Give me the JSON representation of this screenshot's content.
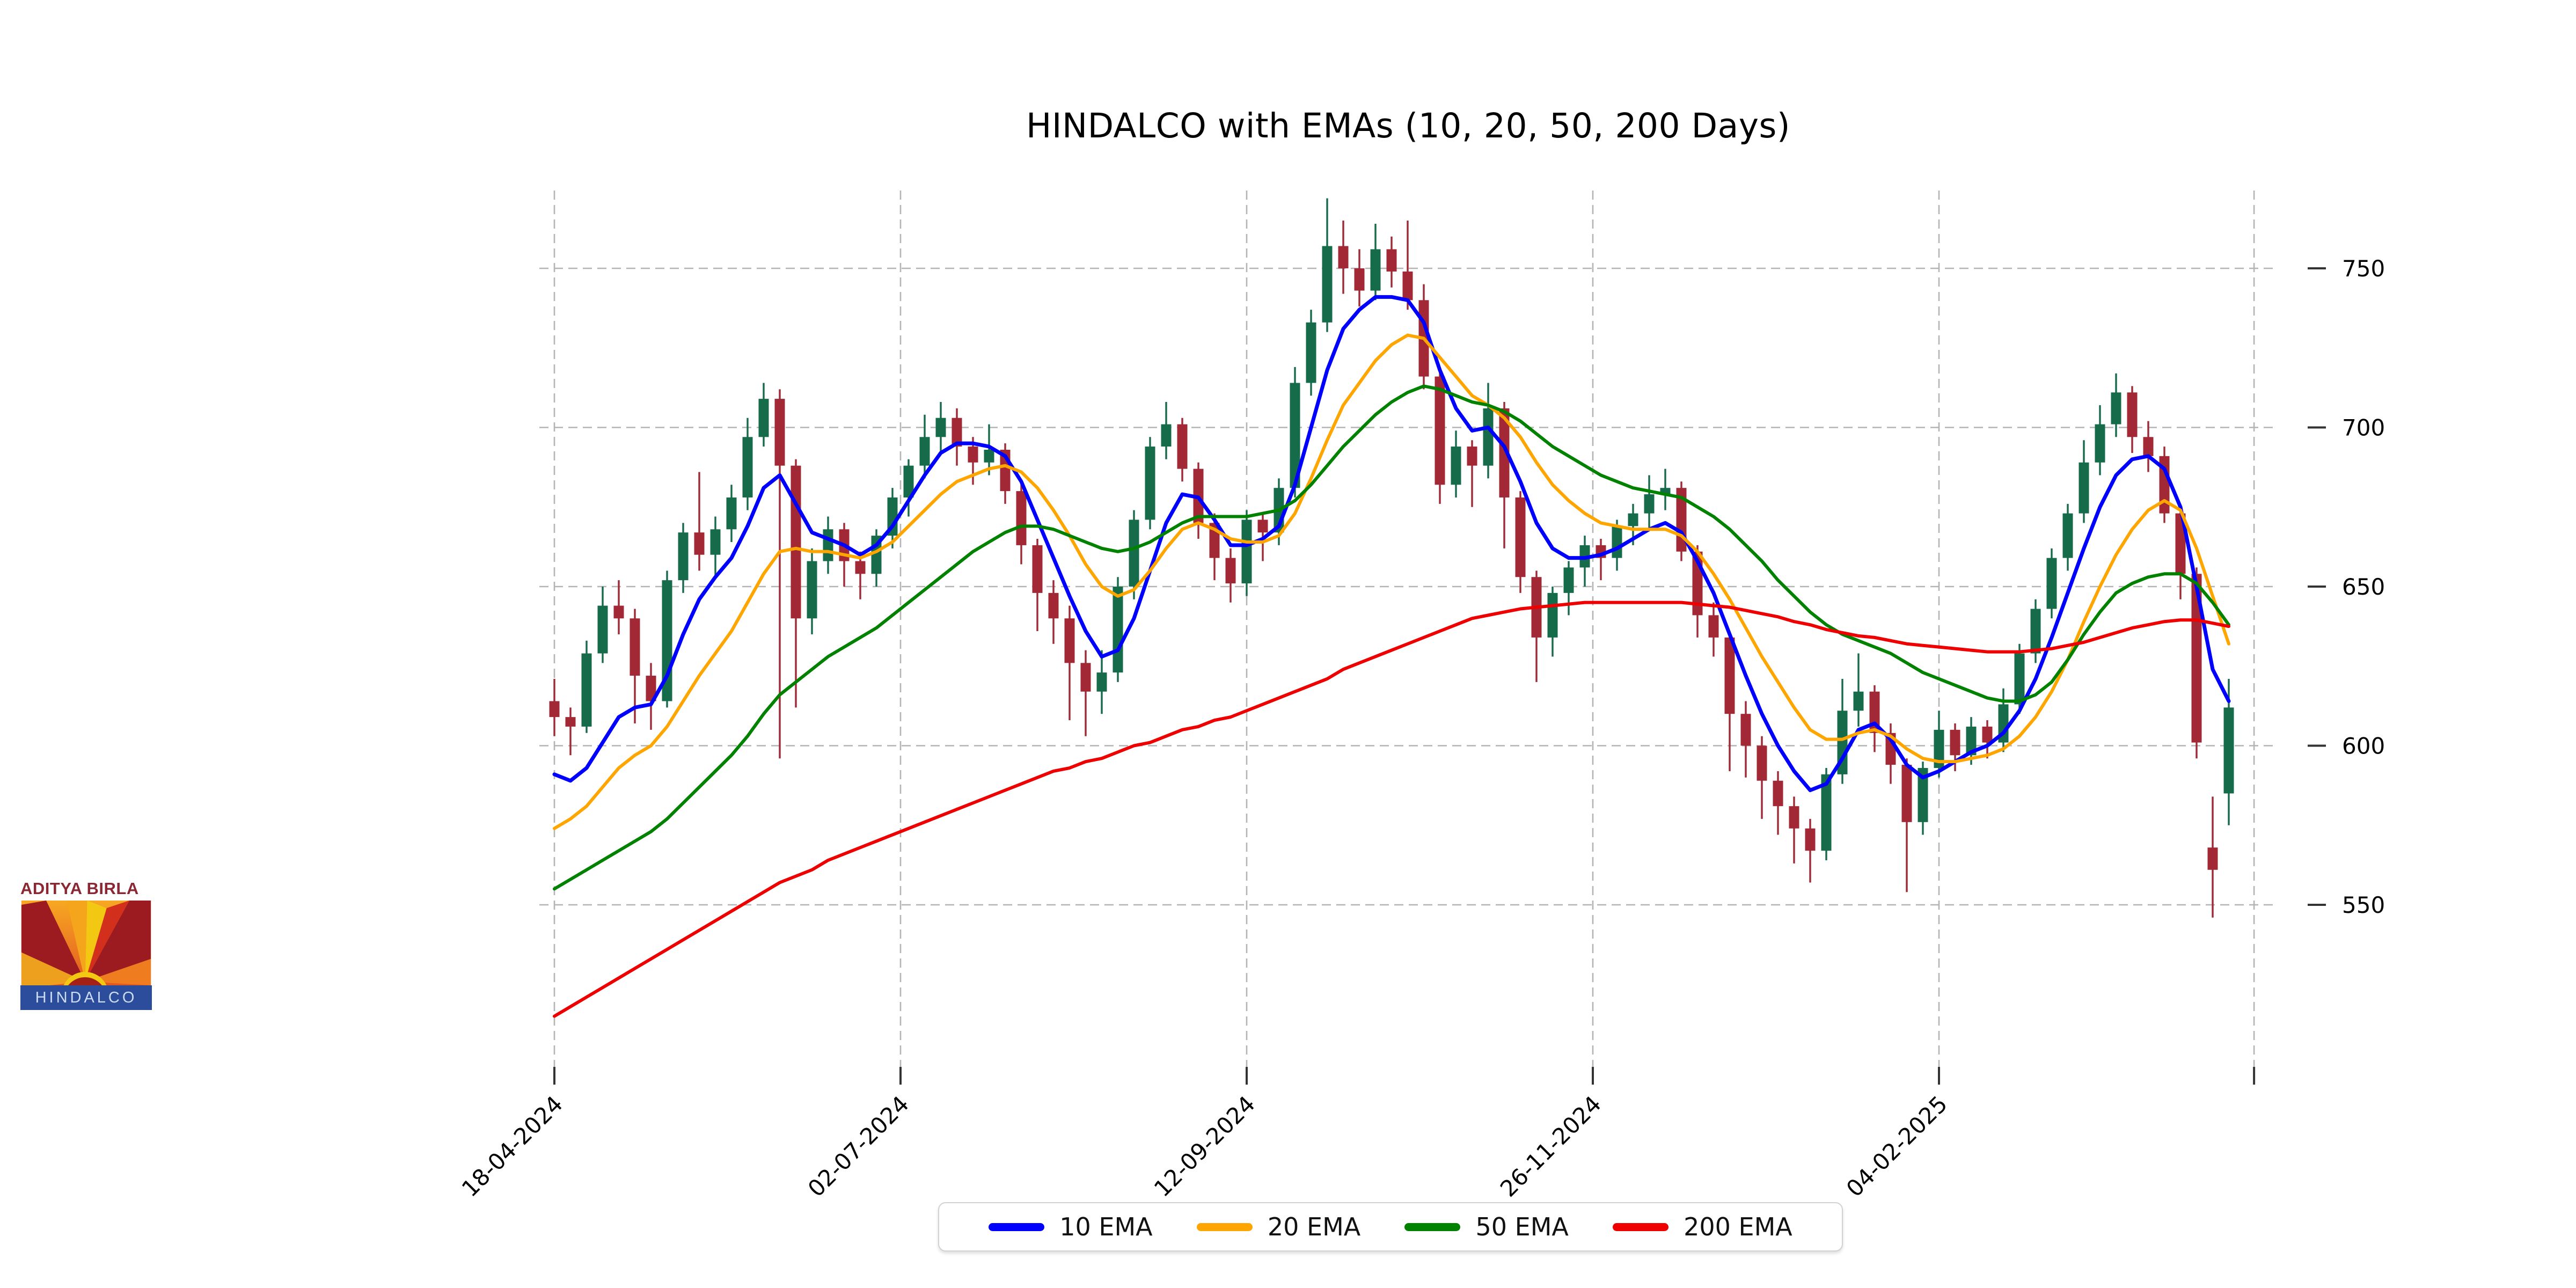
{
  "page": {
    "background": "#ffffff"
  },
  "logo": {
    "brand_top": "ADITYA BIRLA",
    "brand_bottom": "HINDALCO",
    "brand_top_color": "#8b2733",
    "bar_color": "#2b4d9c",
    "bar_text_color": "#cddcf5"
  },
  "chart_data": {
    "type": "candlestick",
    "title": "HINDALCO with EMAs (10, 20, 50, 200 Days)",
    "xlabel": "",
    "ylabel": "",
    "ylim": [
      499,
      774
    ],
    "y_ticks": [
      550,
      600,
      650,
      700,
      750
    ],
    "x_ticks": [
      {
        "label": "18-04-2024",
        "pos": 0
      },
      {
        "label": "02-07-2024",
        "pos": 21.5
      },
      {
        "label": "12-09-2024",
        "pos": 43
      },
      {
        "label": "26-11-2024",
        "pos": 64.5
      },
      {
        "label": "04-02-2025",
        "pos": 86
      },
      {
        "label": "",
        "pos": 105.57
      }
    ],
    "grid": true,
    "legend_position": "bottom-center",
    "colors": {
      "up": "#156b4a",
      "down": "#a12834",
      "grid": "#b4b4b4",
      "ema10": "#0000ff",
      "ema20": "#ffa500",
      "ema50": "#008200",
      "ema200": "#ee0000"
    },
    "legend": [
      {
        "name": "10 EMA",
        "key": "ema10"
      },
      {
        "name": "20 EMA",
        "key": "ema20"
      },
      {
        "name": "50 EMA",
        "key": "ema50"
      },
      {
        "name": "200 EMA",
        "key": "ema200"
      }
    ],
    "candles": [
      [
        614,
        621,
        603,
        609
      ],
      [
        609,
        612,
        597,
        606
      ],
      [
        606,
        633,
        604,
        629
      ],
      [
        629,
        650,
        626,
        644
      ],
      [
        644,
        652,
        635,
        640
      ],
      [
        640,
        643,
        607,
        622
      ],
      [
        622,
        626,
        605,
        614
      ],
      [
        614,
        655,
        612,
        652
      ],
      [
        652,
        670,
        648,
        667
      ],
      [
        667,
        686,
        655,
        660
      ],
      [
        660,
        672,
        653,
        668
      ],
      [
        668,
        682,
        664,
        678
      ],
      [
        678,
        703,
        674,
        697
      ],
      [
        697,
        714,
        694,
        709
      ],
      [
        709,
        712,
        596,
        688
      ],
      [
        688,
        690,
        612,
        640
      ],
      [
        640,
        662,
        635,
        658
      ],
      [
        658,
        672,
        654,
        668
      ],
      [
        668,
        670,
        650,
        658
      ],
      [
        658,
        661,
        646,
        654
      ],
      [
        654,
        668,
        650,
        666
      ],
      [
        666,
        681,
        662,
        678
      ],
      [
        678,
        690,
        672,
        688
      ],
      [
        688,
        704,
        684,
        697
      ],
      [
        697,
        708,
        692,
        703
      ],
      [
        703,
        706,
        688,
        694
      ],
      [
        694,
        697,
        682,
        689
      ],
      [
        689,
        701,
        685,
        693
      ],
      [
        693,
        695,
        676,
        680
      ],
      [
        680,
        683,
        657,
        663
      ],
      [
        663,
        665,
        636,
        648
      ],
      [
        648,
        652,
        632,
        640
      ],
      [
        640,
        644,
        608,
        626
      ],
      [
        626,
        630,
        603,
        617
      ],
      [
        617,
        630,
        610,
        623
      ],
      [
        623,
        653,
        620,
        650
      ],
      [
        650,
        674,
        646,
        671
      ],
      [
        671,
        697,
        668,
        694
      ],
      [
        694,
        708,
        690,
        701
      ],
      [
        701,
        703,
        683,
        687
      ],
      [
        687,
        689,
        665,
        670
      ],
      [
        670,
        673,
        652,
        659
      ],
      [
        659,
        662,
        645,
        651
      ],
      [
        651,
        674,
        647,
        671
      ],
      [
        671,
        673,
        658,
        667
      ],
      [
        667,
        684,
        663,
        681
      ],
      [
        681,
        719,
        678,
        714
      ],
      [
        714,
        737,
        710,
        733
      ],
      [
        733,
        772,
        730,
        757
      ],
      [
        757,
        765,
        742,
        750
      ],
      [
        750,
        756,
        738,
        743
      ],
      [
        743,
        764,
        740,
        756
      ],
      [
        756,
        760,
        744,
        749
      ],
      [
        749,
        765,
        737,
        740
      ],
      [
        740,
        745,
        712,
        716
      ],
      [
        716,
        718,
        676,
        682
      ],
      [
        682,
        699,
        678,
        694
      ],
      [
        694,
        696,
        675,
        688
      ],
      [
        688,
        714,
        684,
        706
      ],
      [
        706,
        708,
        662,
        678
      ],
      [
        678,
        680,
        648,
        653
      ],
      [
        653,
        655,
        620,
        634
      ],
      [
        634,
        650,
        628,
        648
      ],
      [
        648,
        658,
        641,
        656
      ],
      [
        656,
        666,
        650,
        663
      ],
      [
        663,
        665,
        652,
        659
      ],
      [
        659,
        671,
        655,
        669
      ],
      [
        669,
        676,
        663,
        673
      ],
      [
        673,
        685,
        668,
        679
      ],
      [
        679,
        687,
        674,
        681
      ],
      [
        681,
        683,
        658,
        661
      ],
      [
        661,
        663,
        634,
        641
      ],
      [
        641,
        645,
        628,
        634
      ],
      [
        634,
        636,
        592,
        610
      ],
      [
        610,
        614,
        590,
        600
      ],
      [
        600,
        603,
        577,
        589
      ],
      [
        589,
        592,
        572,
        581
      ],
      [
        581,
        584,
        563,
        574
      ],
      [
        574,
        577,
        557,
        567
      ],
      [
        567,
        593,
        564,
        591
      ],
      [
        591,
        621,
        588,
        611
      ],
      [
        611,
        629,
        606,
        617
      ],
      [
        617,
        619,
        598,
        604
      ],
      [
        604,
        607,
        588,
        594
      ],
      [
        594,
        596,
        554,
        576
      ],
      [
        576,
        595,
        572,
        593
      ],
      [
        593,
        611,
        590,
        605
      ],
      [
        605,
        607,
        592,
        597
      ],
      [
        597,
        609,
        594,
        606
      ],
      [
        606,
        608,
        596,
        601
      ],
      [
        601,
        618,
        598,
        613
      ],
      [
        613,
        632,
        610,
        629
      ],
      [
        629,
        646,
        626,
        643
      ],
      [
        643,
        662,
        640,
        659
      ],
      [
        659,
        676,
        655,
        673
      ],
      [
        673,
        696,
        670,
        689
      ],
      [
        689,
        707,
        685,
        701
      ],
      [
        701,
        717,
        697,
        711
      ],
      [
        711,
        713,
        692,
        697
      ],
      [
        697,
        702,
        686,
        691
      ],
      [
        691,
        694,
        670,
        673
      ],
      [
        673,
        675,
        646,
        654
      ],
      [
        654,
        656,
        596,
        601
      ],
      [
        568,
        584,
        546,
        561
      ],
      [
        585,
        621,
        575,
        612
      ]
    ],
    "series": [
      {
        "name": "10 EMA",
        "key": "ema10",
        "values": [
          591,
          589,
          593,
          601,
          609,
          612,
          613,
          622,
          635,
          646,
          653,
          659,
          669,
          681,
          685,
          676,
          667,
          665,
          663,
          660,
          663,
          669,
          677,
          685,
          692,
          695,
          695,
          694,
          691,
          683,
          671,
          659,
          647,
          636,
          628,
          630,
          640,
          655,
          670,
          679,
          678,
          671,
          663,
          663,
          665,
          669,
          682,
          700,
          718,
          731,
          737,
          741,
          741,
          740,
          733,
          718,
          706,
          699,
          700,
          694,
          683,
          670,
          662,
          659,
          659,
          660,
          662,
          665,
          668,
          670,
          667,
          658,
          648,
          635,
          622,
          610,
          600,
          592,
          586,
          588,
          596,
          605,
          607,
          602,
          594,
          590,
          592,
          595,
          598,
          600,
          604,
          611,
          621,
          634,
          648,
          662,
          675,
          685,
          690,
          691,
          687,
          675,
          650,
          624,
          614
        ]
      },
      {
        "name": "20 EMA",
        "key": "ema20",
        "values": [
          574,
          577,
          581,
          587,
          593,
          597,
          600,
          606,
          614,
          622,
          629,
          636,
          645,
          654,
          661,
          662,
          661,
          661,
          660,
          659,
          661,
          664,
          669,
          674,
          679,
          683,
          685,
          687,
          688,
          686,
          681,
          674,
          666,
          657,
          650,
          647,
          649,
          655,
          662,
          668,
          670,
          668,
          665,
          664,
          664,
          666,
          673,
          684,
          696,
          707,
          714,
          721,
          726,
          729,
          728,
          722,
          716,
          710,
          707,
          703,
          697,
          689,
          682,
          677,
          673,
          670,
          669,
          668,
          668,
          668,
          666,
          661,
          654,
          646,
          637,
          628,
          620,
          612,
          605,
          602,
          602,
          604,
          605,
          603,
          599,
          596,
          595,
          595,
          596,
          597,
          599,
          603,
          609,
          617,
          627,
          639,
          650,
          660,
          668,
          674,
          677,
          674,
          662,
          647,
          632
        ]
      },
      {
        "name": "50 EMA",
        "key": "ema50",
        "values": [
          555,
          558,
          561,
          564,
          567,
          570,
          573,
          577,
          582,
          587,
          592,
          597,
          603,
          610,
          616,
          620,
          624,
          628,
          631,
          634,
          637,
          641,
          645,
          649,
          653,
          657,
          661,
          664,
          667,
          669,
          669,
          668,
          666,
          664,
          662,
          661,
          662,
          664,
          667,
          670,
          672,
          672,
          672,
          672,
          673,
          674,
          677,
          682,
          688,
          694,
          699,
          704,
          708,
          711,
          713,
          712,
          710,
          708,
          707,
          705,
          702,
          698,
          694,
          691,
          688,
          685,
          683,
          681,
          680,
          679,
          678,
          675,
          672,
          668,
          663,
          658,
          652,
          647,
          642,
          638,
          635,
          633,
          631,
          629,
          626,
          623,
          621,
          619,
          617,
          615,
          614,
          614,
          616,
          620,
          627,
          635,
          642,
          648,
          651,
          653,
          654,
          654,
          651,
          645,
          638
        ]
      },
      {
        "name": "200 EMA",
        "key": "ema200",
        "values": [
          515,
          518,
          521,
          524,
          527,
          530,
          533,
          536,
          539,
          542,
          545,
          548,
          551,
          554,
          557,
          559,
          561,
          564,
          566,
          568,
          570,
          572,
          574,
          576,
          578,
          580,
          582,
          584,
          586,
          588,
          590,
          592,
          593,
          595,
          596,
          598,
          600,
          601,
          603,
          605,
          606,
          608,
          609,
          611,
          613,
          615,
          617,
          619,
          621,
          624,
          626,
          628,
          630,
          632,
          634,
          636,
          638,
          640,
          641,
          642,
          643,
          643.5,
          644,
          644.5,
          645,
          645,
          645,
          645,
          645,
          645,
          645,
          644.5,
          644,
          643.5,
          642.5,
          641.5,
          640.5,
          639,
          638,
          636.5,
          635.5,
          634.5,
          634,
          633,
          632,
          631.5,
          631,
          630.5,
          630,
          629.5,
          629.5,
          629.5,
          630,
          630.5,
          631.5,
          632.5,
          634,
          635.5,
          637,
          638,
          639,
          639.5,
          639.5,
          638.5,
          637.5
        ]
      }
    ]
  }
}
